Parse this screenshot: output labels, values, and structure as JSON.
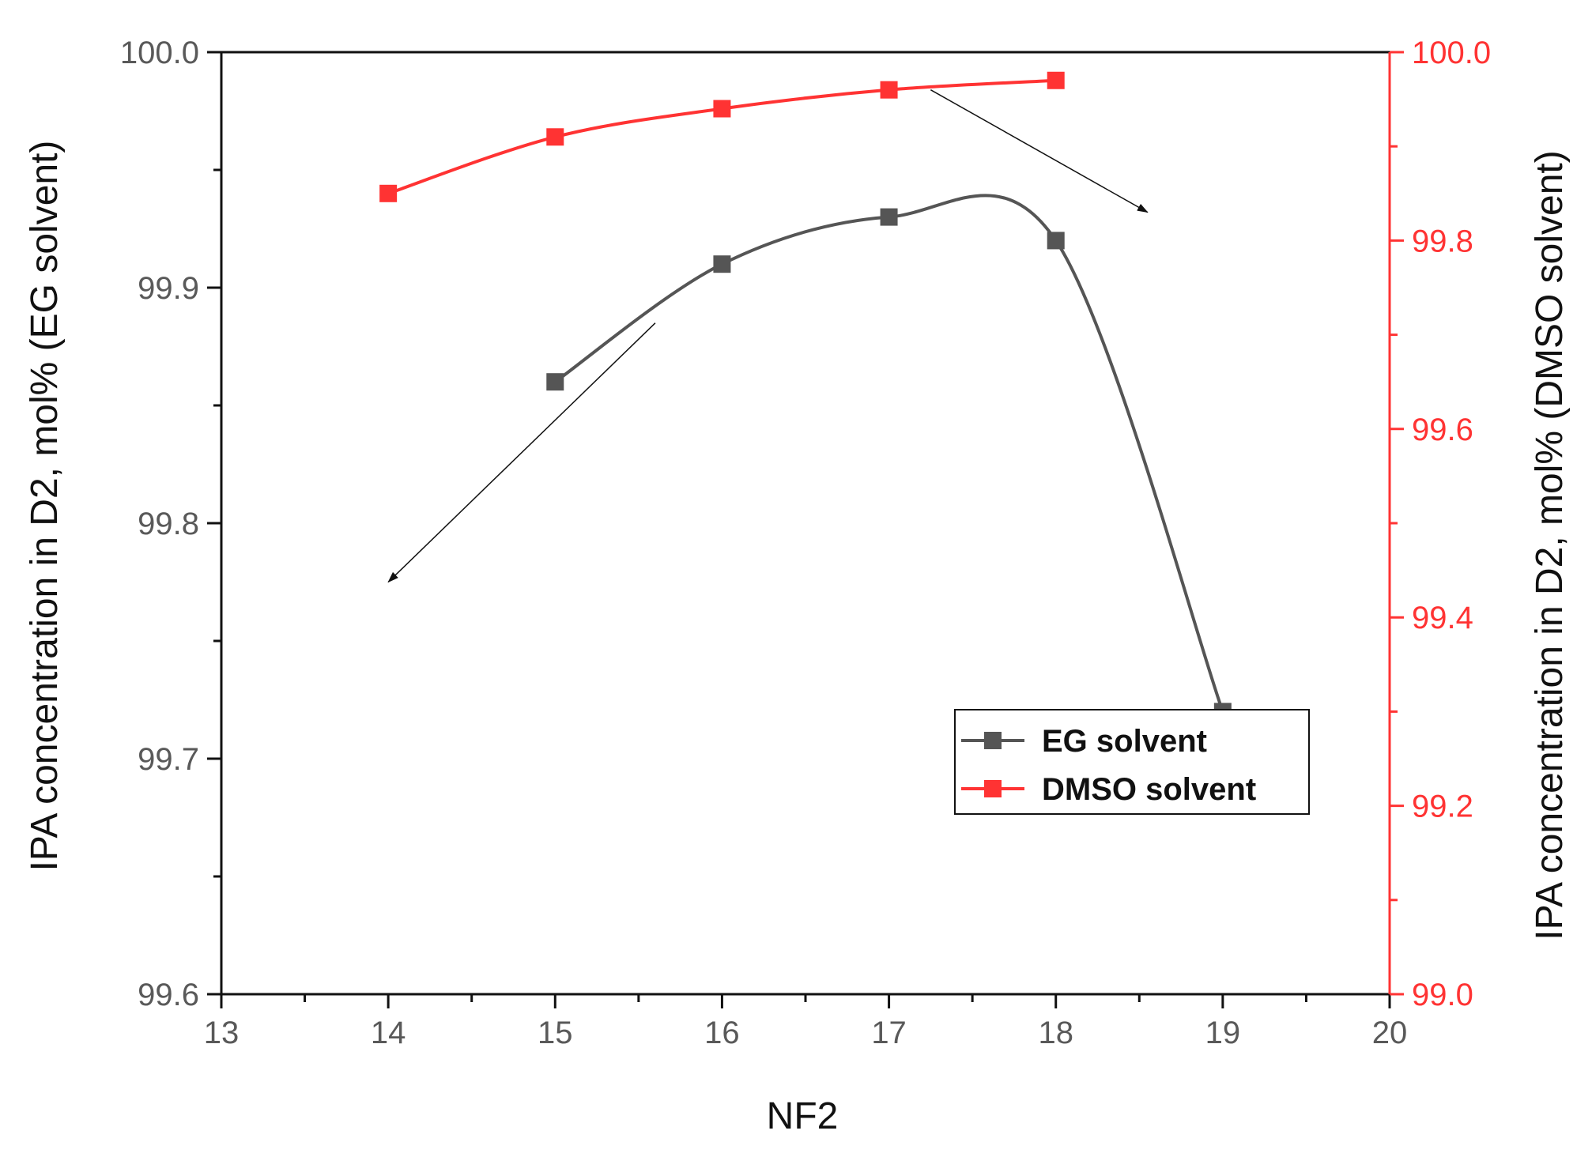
{
  "chart_data": {
    "type": "line",
    "title": "",
    "xlabel": "NF2",
    "ylabel_left": "IPA concentration in D2, mol% (EG solvent)",
    "ylabel_right": "IPA concentration in D2, mol% (DMSO solvent)",
    "xlim": [
      13,
      20
    ],
    "ylim_left": [
      99.6,
      100.0
    ],
    "ylim_right": [
      99.0,
      100.0
    ],
    "x_ticks": [
      "13",
      "14",
      "15",
      "16",
      "17",
      "18",
      "19",
      "20"
    ],
    "y_left_ticks": [
      "99.6",
      "99.7",
      "99.8",
      "99.9",
      "100.0"
    ],
    "y_right_ticks": [
      "99.0",
      "99.2",
      "99.4",
      "99.6",
      "99.8",
      "100.0"
    ],
    "grid": false,
    "legend_position": "lower-right",
    "series": [
      {
        "name": "EG solvent",
        "axis": "left",
        "color": "#555555",
        "marker": "square",
        "x": [
          15,
          16,
          17,
          18,
          19
        ],
        "y": [
          99.86,
          99.91,
          99.93,
          99.92,
          99.72
        ]
      },
      {
        "name": "DMSO solvent",
        "axis": "right",
        "color": "#ff3333",
        "marker": "square",
        "x": [
          14,
          15,
          16,
          17,
          18
        ],
        "y": [
          99.85,
          99.91,
          99.94,
          99.96,
          99.97
        ]
      }
    ],
    "annotations": [
      {
        "type": "arrow",
        "from": [
          15.6,
          99.885
        ],
        "to": [
          14.0,
          99.775
        ],
        "axis": "left",
        "meaning": "points to EG solvent axis"
      },
      {
        "type": "arrow",
        "from": [
          17.25,
          99.96
        ],
        "to": [
          18.55,
          99.83
        ],
        "axis": "right",
        "meaning": "points to DMSO solvent axis"
      }
    ]
  }
}
